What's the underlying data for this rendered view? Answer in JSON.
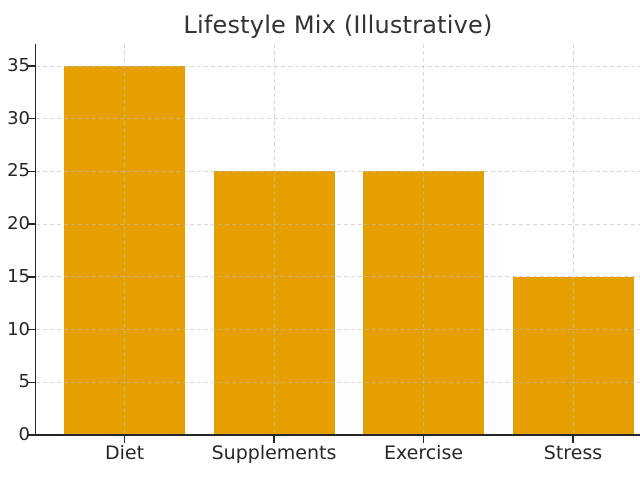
{
  "chart_data": {
    "type": "bar",
    "title": "Lifestyle Mix (Illustrative)",
    "categories": [
      "Diet",
      "Supplements",
      "Exercise",
      "Stress"
    ],
    "values": [
      35,
      25,
      25,
      15
    ],
    "xlabel": "",
    "ylabel": "",
    "yticks": [
      0,
      5,
      10,
      15,
      20,
      25,
      30,
      35
    ],
    "ylim": [
      0,
      37
    ],
    "grid": true,
    "grid_style": "dashed",
    "legend_position": "none",
    "colors": {
      "bar": "#E69F00",
      "grid": "#bdbdbd",
      "spine": "#262626",
      "tick_text": "#262626",
      "title_text": "#333333",
      "background": "#ffffff"
    }
  }
}
